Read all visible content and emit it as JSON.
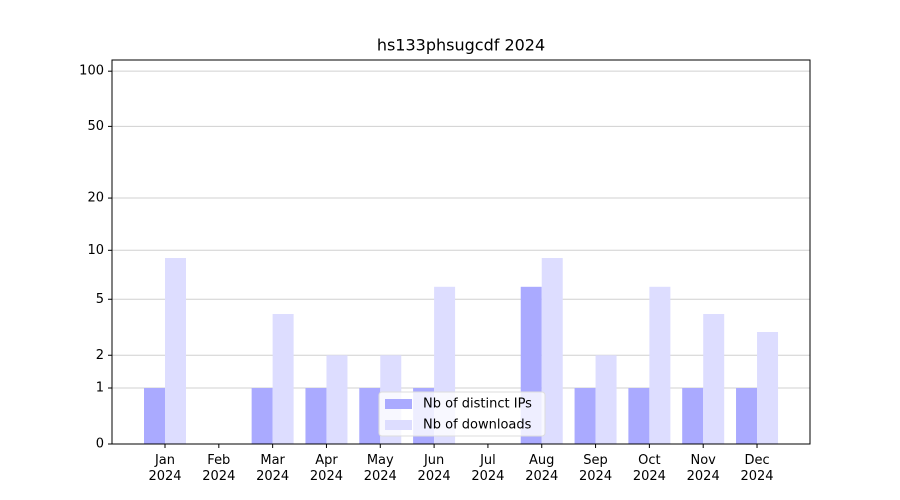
{
  "chart_data": {
    "type": "bar",
    "title": "hs133phsugcdf 2024",
    "categories": [
      "Jan 2024",
      "Feb 2024",
      "Mar 2024",
      "Apr 2024",
      "May 2024",
      "Jun 2024",
      "Jul 2024",
      "Aug 2024",
      "Sep 2024",
      "Oct 2024",
      "Nov 2024",
      "Dec 2024"
    ],
    "series": [
      {
        "name": "Nb of distinct IPs",
        "color": "#aaaaff",
        "values": [
          1,
          0,
          1,
          1,
          1,
          1,
          0,
          6,
          1,
          1,
          1,
          1
        ]
      },
      {
        "name": "Nb of downloads",
        "color": "#ddddff",
        "values": [
          9,
          0,
          4,
          2,
          2,
          6,
          0,
          9,
          2,
          6,
          4,
          3
        ]
      }
    ],
    "scale": "log1p",
    "ylim": [
      0,
      115
    ],
    "yticks": [
      0,
      1,
      2,
      5,
      10,
      20,
      50,
      100
    ],
    "grid": true,
    "legend": "lower center"
  }
}
